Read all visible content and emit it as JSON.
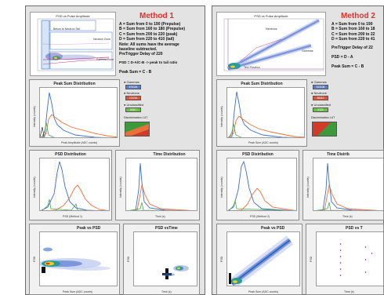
{
  "colors": {
    "red": "#e0322c",
    "blue": "#3a6fc4",
    "orange": "#e8703a",
    "green": "#4aa84a",
    "panel": "#e3e3e3"
  },
  "method1": {
    "title": "Method 1",
    "lines": [
      "A = Sum from 0 to 190 (Prepulse)",
      "B = Sum from 160 to 180 (Prepulse)",
      "C = Sum from 200 to 220 (peak)",
      "D = Sum from 220 to 410 (tail)",
      "Note: All sums have the average",
      "baseline subtracted.",
      "PreTrigger Delay of 220"
    ],
    "psd": "PSD = D-A/C-B -> peak to tail ratio",
    "peaksum": "Peak Sum = C - B",
    "top_plot": {
      "title": "PSD vs Pulse Amplitude",
      "labels": [
        "Below to Neutron Tail",
        "Neutron Zone",
        "Gamma Zone"
      ]
    },
    "cards": {
      "peak_sum": "Peak Sum Distribution",
      "psd": "PSD Distribution",
      "time": "Time Distribution",
      "psd_vs_peak": "Peak vs PSD",
      "psd_vs_time": "PSD vsTime"
    },
    "legend": {
      "gammas": "Gammas",
      "neutrons": "Neutrons",
      "unclassified": "Unclassified"
    },
    "counts": {
      "gammas": "876325",
      "neutrons": "122216",
      "unclassified": "10817"
    },
    "disc": "Discrimination LUT"
  },
  "method2": {
    "title": "Method 2",
    "lines": [
      "A = Sum from 0 to 190",
      "B = Sum from 160 to 18",
      "C = Sum from 200 to 22",
      "D = Sum from 220 to 41"
    ],
    "pretrigger": "PreTrigger Delay of 22",
    "psd": "PSD = D - A",
    "peaksum": "Peak Sum = C - B",
    "top_plot": {
      "title": "PSD vs Pulse Amplitude",
      "labels": [
        "Neutrons",
        "Gammas",
        "Test Positron"
      ]
    },
    "cards": {
      "peak_sum": "Peak Sum Distribution",
      "psd": "PSD Distribution",
      "time": "Time Distrib",
      "psd_vs_peak": "Peak vs PSD",
      "psd_vs_time": "PSD vs T"
    },
    "legend": {
      "gammas": "Gammas",
      "neutrons": "Neutrons",
      "unclassified": "Unclassified"
    },
    "counts": {
      "gammas": "923108",
      "neutrons": "85412",
      "unclassified": "9124"
    },
    "disc": "Discrimination LUT"
  },
  "axes": {
    "counts": "Intensity (counts)",
    "peak_amp": "Peak Amplitude (ADC counts)",
    "peak_sum": "Peak Sum (ADC counts)",
    "psd_m1": "PSD (Method 1)",
    "psd_m2": "PSD (Method 2)",
    "time": "Time (s)",
    "psd": "PSD"
  }
}
